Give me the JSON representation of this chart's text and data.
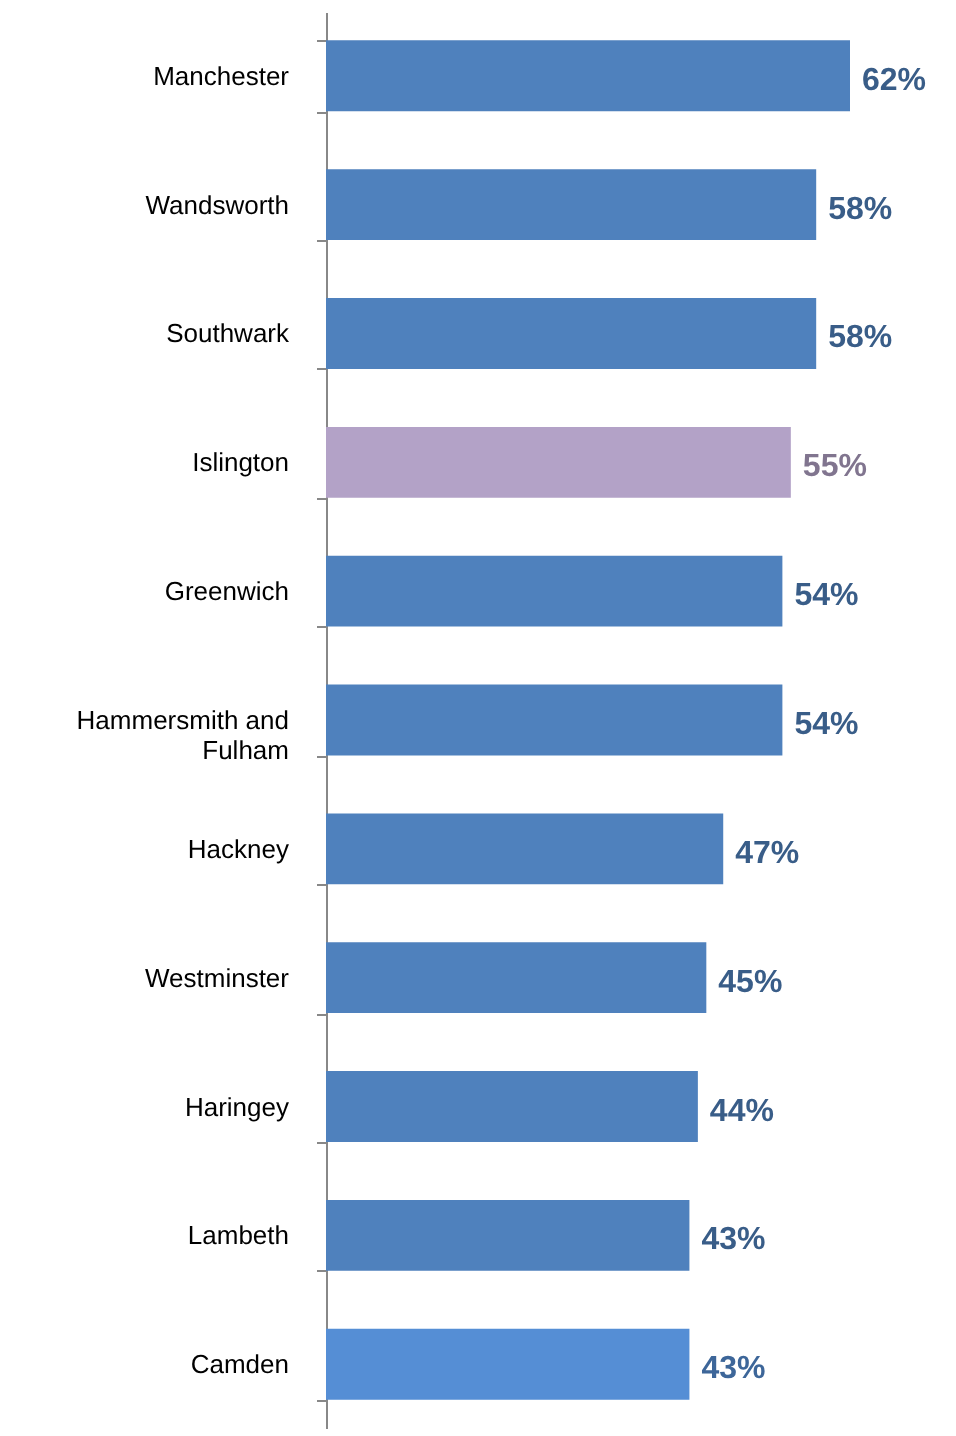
{
  "chart_data": {
    "type": "bar",
    "orientation": "horizontal",
    "categories": [
      "Manchester",
      "Wandsworth",
      "Southwark",
      "Islington",
      "Greenwich",
      "Hammersmith and Fulham",
      "Hackney",
      "Westminster",
      "Haringey",
      "Lambeth",
      "Camden"
    ],
    "values": [
      62,
      58,
      58,
      55,
      54,
      54,
      47,
      45,
      44,
      43,
      43
    ],
    "colors": [
      "#4f81bd",
      "#4f81bd",
      "#4f81bd",
      "#b3a2c7",
      "#4f81bd",
      "#4f81bd",
      "#4f81bd",
      "#4f81bd",
      "#4f81bd",
      "#4f81bd",
      "#558ed5"
    ],
    "value_labels": [
      "62%",
      "58%",
      "58%",
      "55%",
      "54%",
      "54%",
      "47%",
      "45%",
      "44%",
      "43%",
      "43%"
    ],
    "grid": false
  }
}
